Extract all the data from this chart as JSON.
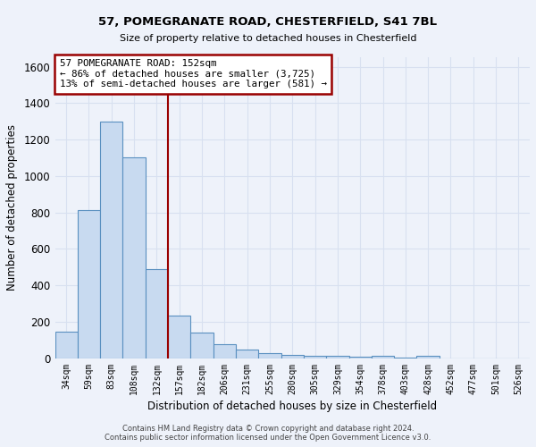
{
  "title1": "57, POMEGRANATE ROAD, CHESTERFIELD, S41 7BL",
  "title2": "Size of property relative to detached houses in Chesterfield",
  "xlabel": "Distribution of detached houses by size in Chesterfield",
  "ylabel": "Number of detached properties",
  "footer1": "Contains HM Land Registry data © Crown copyright and database right 2024.",
  "footer2": "Contains public sector information licensed under the Open Government Licence v3.0.",
  "bar_labels": [
    "34sqm",
    "59sqm",
    "83sqm",
    "108sqm",
    "132sqm",
    "157sqm",
    "182sqm",
    "206sqm",
    "231sqm",
    "255sqm",
    "280sqm",
    "305sqm",
    "329sqm",
    "354sqm",
    "378sqm",
    "403sqm",
    "428sqm",
    "452sqm",
    "477sqm",
    "501sqm",
    "526sqm"
  ],
  "bar_values": [
    145,
    815,
    1300,
    1100,
    490,
    235,
    140,
    75,
    45,
    25,
    15,
    10,
    12,
    5,
    10,
    2,
    12,
    0,
    0,
    0,
    0
  ],
  "bar_color": "#c8daf0",
  "bar_edge_color": "#5a90c0",
  "background_color": "#eef2fa",
  "grid_color": "#d8e0f0",
  "vline_x": 4.5,
  "vline_color": "#990000",
  "annotation_text": "57 POMEGRANATE ROAD: 152sqm\n← 86% of detached houses are smaller (3,725)\n13% of semi-detached houses are larger (581) →",
  "annotation_box_facecolor": "#ffffff",
  "annotation_box_edgecolor": "#990000",
  "ylim": [
    0,
    1650
  ],
  "yticks": [
    0,
    200,
    400,
    600,
    800,
    1000,
    1200,
    1400,
    1600
  ]
}
